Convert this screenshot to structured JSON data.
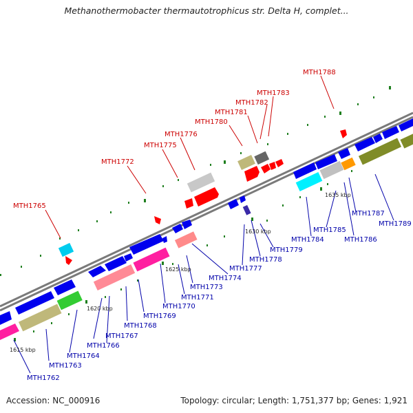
{
  "header": {
    "title": "Methanothermobacter thermautotrophicus str. Delta H, complet..."
  },
  "footer": {
    "accession": "Accession: NC_000916",
    "summary": "Topology: circular; Length: 1,751,377 bp; Genes: 1,921"
  },
  "ticks": [
    "1615 kbp",
    "1620 kbp",
    "1625 kbp",
    "1630 kbp",
    "1635 kbp"
  ],
  "genes_above": [
    "MTH1765",
    "MTH1772",
    "MTH1775",
    "MTH1776",
    "MTH1780",
    "MTH1781",
    "MTH1782",
    "MTH1783",
    "MTH1788"
  ],
  "genes_below": [
    "MTH1762",
    "MTH1763",
    "MTH1764",
    "MTH1766",
    "MTH1767",
    "MTH1768",
    "MTH1769",
    "MTH1770",
    "MTH1771",
    "MTH1773",
    "MTH1774",
    "MTH1777",
    "MTH1778",
    "MTH1779",
    "MTH1784",
    "MTH1785",
    "MTH1786",
    "MTH1787",
    "MTH1789"
  ],
  "colors": {
    "above_label": "#cc0000",
    "below_label": "#0000aa",
    "backbone": "#7a7a7a",
    "dots": "#1f7f1f"
  }
}
